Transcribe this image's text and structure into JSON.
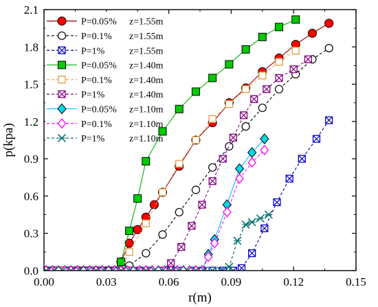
{
  "chart_data": {
    "type": "line",
    "xlabel": "r(m)",
    "ylabel": "p(kpa)",
    "xlim": [
      0.0,
      0.15
    ],
    "ylim": [
      0.0,
      2.1
    ],
    "xticks": [
      0.0,
      0.03,
      0.06,
      0.09,
      0.12,
      0.15
    ],
    "xtick_labels": [
      "0.00",
      "0.03",
      "0.06",
      "0.09",
      "0.12",
      "0.15"
    ],
    "yticks": [
      0.0,
      0.3,
      0.6,
      0.9,
      1.2,
      1.5,
      1.8,
      2.1
    ],
    "ytick_labels": [
      "0.0",
      "0.3",
      "0.6",
      "0.9",
      "1.2",
      "1.5",
      "1.8",
      "2.1"
    ],
    "grid": false,
    "legend_position": "top-left",
    "series": [
      {
        "name": "P=0.05%",
        "z": "z=1.55m",
        "color": "#8b0000",
        "marker": "filled-circle",
        "marker_color": "#ff0000",
        "line_style": "solid",
        "x": [
          0.001,
          0.004,
          0.007,
          0.01,
          0.013,
          0.016,
          0.019,
          0.022,
          0.025,
          0.028,
          0.031,
          0.034,
          0.037,
          0.041,
          0.045,
          0.049,
          0.053,
          0.057,
          0.065,
          0.073,
          0.081,
          0.089,
          0.097,
          0.105,
          0.113,
          0.121,
          0.129,
          0.137
        ],
        "y": [
          0,
          0,
          0,
          0,
          0,
          0,
          0,
          0,
          0,
          0,
          0,
          0,
          0.07,
          0.22,
          0.33,
          0.43,
          0.53,
          0.63,
          0.84,
          1.05,
          1.19,
          1.35,
          1.47,
          1.6,
          1.71,
          1.82,
          1.91,
          1.99
        ]
      },
      {
        "name": "P=0.1%",
        "z": "z=1.55m",
        "color": "#000000",
        "marker": "open-circle",
        "marker_color": "#000000",
        "line_style": "dashed",
        "x": [
          0.001,
          0.004,
          0.007,
          0.01,
          0.013,
          0.016,
          0.019,
          0.022,
          0.025,
          0.028,
          0.031,
          0.034,
          0.037,
          0.041,
          0.049,
          0.057,
          0.065,
          0.073,
          0.081,
          0.089,
          0.097,
          0.105,
          0.113,
          0.121,
          0.129,
          0.137
        ],
        "y": [
          0,
          0,
          0,
          0,
          0,
          0,
          0,
          0,
          0,
          0,
          0,
          0,
          0,
          0.04,
          0.14,
          0.29,
          0.47,
          0.65,
          0.83,
          1.0,
          1.16,
          1.31,
          1.46,
          1.58,
          1.7,
          1.79
        ]
      },
      {
        "name": "P=1%",
        "z": "z=1.55m",
        "color": "#00008b",
        "marker": "crossed-square",
        "marker_color": "#0000cd",
        "line_style": "dashed",
        "x": [
          0.001,
          0.006,
          0.011,
          0.016,
          0.021,
          0.026,
          0.031,
          0.036,
          0.041,
          0.046,
          0.051,
          0.056,
          0.061,
          0.066,
          0.071,
          0.076,
          0.081,
          0.086,
          0.091,
          0.095,
          0.1,
          0.106,
          0.112,
          0.118,
          0.124,
          0.131,
          0.137
        ],
        "y": [
          0,
          0,
          0,
          0,
          0,
          0,
          0,
          0,
          0,
          0,
          0,
          0,
          0,
          0,
          0,
          0,
          0,
          0,
          0,
          0.02,
          0.14,
          0.34,
          0.55,
          0.74,
          0.9,
          1.06,
          1.21
        ]
      },
      {
        "name": "P=0.05%",
        "z": "z=1.40m",
        "color": "#00b000",
        "marker": "filled-square",
        "marker_color": "#00cc00",
        "line_style": "solid",
        "x": [
          0.001,
          0.004,
          0.007,
          0.01,
          0.013,
          0.016,
          0.019,
          0.022,
          0.025,
          0.028,
          0.031,
          0.034,
          0.037,
          0.041,
          0.045,
          0.049,
          0.057,
          0.065,
          0.073,
          0.081,
          0.089,
          0.097,
          0.105,
          0.113,
          0.121
        ],
        "y": [
          0,
          0,
          0,
          0,
          0,
          0,
          0,
          0,
          0,
          0,
          0,
          0,
          0.07,
          0.32,
          0.58,
          0.88,
          1.12,
          1.3,
          1.44,
          1.55,
          1.66,
          1.78,
          1.88,
          1.96,
          2.02
        ]
      },
      {
        "name": "P=0.1%",
        "z": "z=1.40m",
        "color": "#f4a460",
        "marker": "open-square",
        "marker_color": "#e69a3c",
        "line_style": "dashed",
        "x": [
          0.001,
          0.004,
          0.007,
          0.01,
          0.013,
          0.016,
          0.019,
          0.022,
          0.025,
          0.028,
          0.031,
          0.034,
          0.037,
          0.041,
          0.049,
          0.057,
          0.065,
          0.073,
          0.081,
          0.089,
          0.097,
          0.105,
          0.113,
          0.121
        ],
        "y": [
          0,
          0,
          0,
          0,
          0,
          0,
          0,
          0,
          0,
          0,
          0,
          0,
          0,
          0.15,
          0.38,
          0.63,
          0.86,
          1.05,
          1.22,
          1.34,
          1.46,
          1.57,
          1.68,
          1.77
        ]
      },
      {
        "name": "P=1%",
        "z": "z=1.40m",
        "color": "#800080",
        "marker": "crossed-square",
        "marker_color": "#800080",
        "line_style": "dashed",
        "x": [
          0.001,
          0.006,
          0.011,
          0.016,
          0.021,
          0.026,
          0.031,
          0.036,
          0.041,
          0.046,
          0.051,
          0.056,
          0.061,
          0.066,
          0.071,
          0.076,
          0.081,
          0.086,
          0.091,
          0.096,
          0.101,
          0.107,
          0.113,
          0.12,
          0.127
        ],
        "y": [
          0,
          0,
          0,
          0,
          0,
          0,
          0,
          0,
          0,
          0,
          0,
          0,
          0.06,
          0.19,
          0.36,
          0.53,
          0.72,
          0.9,
          1.07,
          1.25,
          1.38,
          1.46,
          1.55,
          1.62,
          1.7
        ]
      },
      {
        "name": "P=0.05%",
        "z": "z=1.10m",
        "color": "#00bfff",
        "marker": "filled-diamond",
        "marker_color": "#00d8e8",
        "line_style": "solid",
        "x": [
          0.001,
          0.004,
          0.007,
          0.01,
          0.013,
          0.016,
          0.019,
          0.022,
          0.025,
          0.028,
          0.031,
          0.034,
          0.037,
          0.04,
          0.043,
          0.046,
          0.049,
          0.052,
          0.055,
          0.058,
          0.061,
          0.064,
          0.067,
          0.07,
          0.073,
          0.076,
          0.079,
          0.082,
          0.088,
          0.094,
          0.1,
          0.106
        ],
        "y": [
          0,
          0,
          0,
          0,
          0,
          0,
          0,
          0,
          0,
          0,
          0,
          0,
          0,
          0,
          0,
          0,
          0,
          0,
          0,
          0,
          0,
          0,
          0,
          0,
          0,
          0,
          0.13,
          0.25,
          0.53,
          0.82,
          0.95,
          1.06
        ]
      },
      {
        "name": "P=0.1%",
        "z": "z=1.10m",
        "color": "#ff00ff",
        "marker": "open-diamond",
        "marker_color": "#ff00ff",
        "line_style": "dashed",
        "x": [
          0.001,
          0.004,
          0.007,
          0.01,
          0.013,
          0.016,
          0.019,
          0.022,
          0.025,
          0.028,
          0.031,
          0.034,
          0.037,
          0.04,
          0.043,
          0.046,
          0.049,
          0.052,
          0.055,
          0.058,
          0.061,
          0.064,
          0.067,
          0.07,
          0.073,
          0.076,
          0.079,
          0.082,
          0.088,
          0.094,
          0.1,
          0.106
        ],
        "y": [
          0,
          0,
          0,
          0,
          0,
          0,
          0,
          0,
          0,
          0,
          0,
          0,
          0,
          0,
          0,
          0,
          0,
          0,
          0,
          0,
          0,
          0,
          0,
          0,
          0,
          0,
          0.11,
          0.22,
          0.47,
          0.74,
          0.87,
          0.97
        ]
      },
      {
        "name": "P=1%",
        "z": "z=1.10m",
        "color": "#006060",
        "marker": "x-cross",
        "marker_color": "#007070",
        "line_style": "dashed",
        "x": [
          0.001,
          0.005,
          0.009,
          0.013,
          0.017,
          0.021,
          0.025,
          0.029,
          0.033,
          0.037,
          0.041,
          0.045,
          0.049,
          0.053,
          0.057,
          0.061,
          0.065,
          0.069,
          0.073,
          0.077,
          0.081,
          0.085,
          0.089,
          0.093,
          0.097,
          0.1,
          0.104,
          0.108
        ],
        "y": [
          0,
          0,
          0,
          0,
          0,
          0,
          0,
          0,
          0,
          0,
          0,
          0,
          0,
          0,
          0,
          0,
          0,
          0,
          0,
          0,
          0,
          0,
          0.03,
          0.24,
          0.37,
          0.39,
          0.42,
          0.45
        ]
      }
    ]
  }
}
